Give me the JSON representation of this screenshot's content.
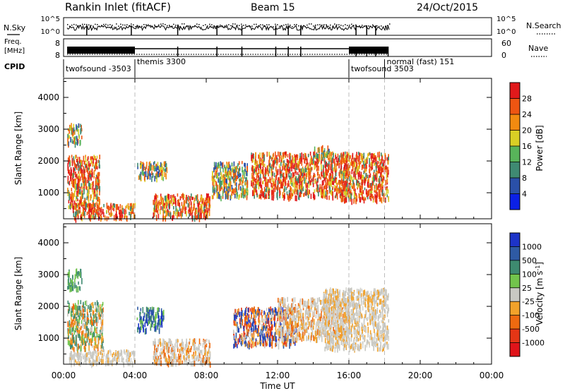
{
  "header": {
    "station": "Rankin Inlet (fitACF)",
    "beam": "Beam 15",
    "date": "24/Oct/2015"
  },
  "top_panels": {
    "nsky": {
      "label": "N.Sky",
      "left_ticks": [
        "10^5",
        "10^0"
      ],
      "right_ticks": [
        "10^5",
        "10^0"
      ],
      "right_label": "N.Search"
    },
    "freq": {
      "label_line1": "Freq.",
      "label_line2": "[MHz]",
      "left_ticks": [
        "8",
        "8"
      ],
      "right_ticks": [
        "60",
        "0"
      ],
      "right_label": "Nave"
    },
    "cpid": {
      "label": "CPID",
      "segments": [
        {
          "name": "twofsound -3503",
          "start_hour": 0.0
        },
        {
          "name": "themis 3300",
          "start_hour": 4.0
        },
        {
          "name": "twofsound 3503",
          "start_hour": 16.0
        },
        {
          "name": "normal (fast) 151",
          "start_hour": 18.0
        }
      ]
    }
  },
  "time_axis": {
    "ticks": [
      "00:00",
      "04:00",
      "08:00",
      "12:00",
      "16:00",
      "20:00",
      "00:00"
    ],
    "label": "Time UT",
    "range_hours": [
      0,
      24
    ],
    "mode_change_hours": [
      4.0,
      16.0,
      18.0
    ]
  },
  "chart_data": [
    {
      "type": "heatmap",
      "title": "Power",
      "xlabel": "Time UT",
      "ylabel": "Slant Range [km]",
      "xlim_hours": [
        0,
        24
      ],
      "ylim_km": [
        180,
        4600
      ],
      "y_ticks": [
        1000,
        2000,
        3000,
        4000
      ],
      "colorbar": {
        "label": "Power [dB]",
        "tick_labels": [
          "4",
          "8",
          "12",
          "16",
          "20",
          "24",
          "28"
        ],
        "bands": [
          "#0b20e6",
          "#2a50a8",
          "#3f8a72",
          "#58b45a",
          "#d9cf25",
          "#f28a10",
          "#ee5512",
          "#e0191b"
        ]
      },
      "echo_regions": [
        {
          "t": [
            0.2,
            2.0
          ],
          "range_km": [
            600,
            2200
          ],
          "value": "high"
        },
        {
          "t": [
            0.2,
            1.0
          ],
          "range_km": [
            2600,
            3200
          ],
          "value": "medium"
        },
        {
          "t": [
            0.5,
            4.0
          ],
          "range_km": [
            250,
            700
          ],
          "value": "high"
        },
        {
          "t": [
            4.1,
            5.8
          ],
          "range_km": [
            1500,
            2000
          ],
          "value": "medium"
        },
        {
          "t": [
            5.0,
            8.2
          ],
          "range_km": [
            250,
            1000
          ],
          "value": "high"
        },
        {
          "t": [
            8.3,
            10.3
          ],
          "range_km": [
            900,
            2000
          ],
          "value": "medium"
        },
        {
          "t": [
            10.5,
            16.0
          ],
          "range_km": [
            900,
            2300
          ],
          "value": "high"
        },
        {
          "t": [
            14.0,
            15.0
          ],
          "range_km": [
            2200,
            2500
          ],
          "value": "medium"
        },
        {
          "t": [
            15.5,
            18.2
          ],
          "range_km": [
            800,
            2300
          ],
          "value": "high"
        }
      ]
    },
    {
      "type": "heatmap",
      "title": "Velocity",
      "xlabel": "Time UT",
      "ylabel": "Slant Range [km]",
      "xlim_hours": [
        0,
        24
      ],
      "ylim_km": [
        180,
        4600
      ],
      "y_ticks": [
        1000,
        2000,
        3000,
        4000
      ],
      "colorbar": {
        "label": "Velocity [m s-1]",
        "tick_labels": [
          "1000",
          "500",
          "100",
          "25",
          "-25",
          "-100",
          "-500",
          "-1000"
        ],
        "bands": [
          "#1d34c8",
          "#2e5aa4",
          "#3e8a70",
          "#72c44c",
          "#c8c8c2",
          "#f2a22a",
          "#ee6a10",
          "#e43616",
          "#e0141a"
        ]
      },
      "echo_regions": [
        {
          "t": [
            0.2,
            2.2
          ],
          "range_km": [
            700,
            2200
          ],
          "value": "mixed-orange-green"
        },
        {
          "t": [
            0.2,
            1.0
          ],
          "range_km": [
            2600,
            3200
          ],
          "value": "green"
        },
        {
          "t": [
            0.3,
            4.0
          ],
          "range_km": [
            250,
            650
          ],
          "value": "grey"
        },
        {
          "t": [
            4.1,
            5.6
          ],
          "range_km": [
            1300,
            2000
          ],
          "value": "blue-green"
        },
        {
          "t": [
            5.0,
            8.2
          ],
          "range_km": [
            250,
            1000
          ],
          "value": "grey-orange"
        },
        {
          "t": [
            9.5,
            13.0
          ],
          "range_km": [
            800,
            2000
          ],
          "value": "orange-blue"
        },
        {
          "t": [
            12.0,
            16.0
          ],
          "range_km": [
            1000,
            2300
          ],
          "value": "grey-orange"
        },
        {
          "t": [
            14.5,
            18.2
          ],
          "range_km": [
            700,
            2600
          ],
          "value": "grey"
        }
      ]
    }
  ]
}
